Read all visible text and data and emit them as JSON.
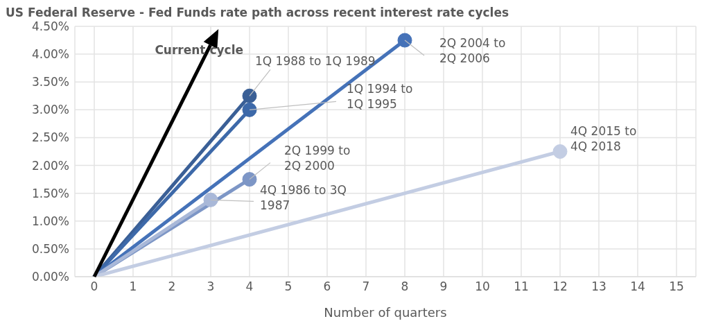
{
  "chart_data": {
    "type": "line",
    "title": "US Federal Reserve - Fed Funds rate path across recent interest rate cycles",
    "xlabel": "Number of quarters",
    "annotations": [
      "Current cycle"
    ],
    "xlim": [
      -0.5,
      15.5
    ],
    "xticks": [
      0,
      1,
      2,
      3,
      4,
      5,
      6,
      7,
      8,
      9,
      10,
      11,
      12,
      13,
      14,
      15
    ],
    "ylim": [
      0,
      4.5
    ],
    "yticks": [
      {
        "value": 0,
        "label": "0.00%"
      },
      {
        "value": 0.5,
        "label": "0.50%"
      },
      {
        "value": 1,
        "label": "1.00%"
      },
      {
        "value": 1.5,
        "label": "1.50%"
      },
      {
        "value": 2,
        "label": "2.00%"
      },
      {
        "value": 2.5,
        "label": "2.50%"
      },
      {
        "value": 3,
        "label": "3.00%"
      },
      {
        "value": 3.5,
        "label": "3.50%"
      },
      {
        "value": 4,
        "label": "4.00%"
      },
      {
        "value": 4.5,
        "label": "4.50%"
      }
    ],
    "grid": true,
    "marker": "circle",
    "series": [
      {
        "name": "1Q 1988 to 1Q 1989",
        "color": "#3a5f96",
        "x": [
          0,
          4
        ],
        "values": [
          0,
          3.25
        ]
      },
      {
        "name": "1Q 1994 to 1Q 1995",
        "color": "#3d69a9",
        "x": [
          0,
          4
        ],
        "values": [
          0,
          3.0
        ]
      },
      {
        "name": "2Q 2004 to 2Q 2006",
        "color": "#4572b8",
        "x": [
          0,
          8
        ],
        "values": [
          0,
          4.25
        ]
      },
      {
        "name": "2Q 1999 to 2Q 2000",
        "color": "#7d96c6",
        "x": [
          0,
          4
        ],
        "values": [
          0,
          1.75
        ]
      },
      {
        "name": "4Q 1986 to 3Q 1987",
        "color": "#a9b8d8",
        "x": [
          0,
          3
        ],
        "values": [
          0,
          1.38
        ]
      },
      {
        "name": "4Q 2015 to 4Q 2018",
        "color": "#c3cde3",
        "x": [
          0,
          12
        ],
        "values": [
          0,
          2.25
        ]
      }
    ]
  }
}
